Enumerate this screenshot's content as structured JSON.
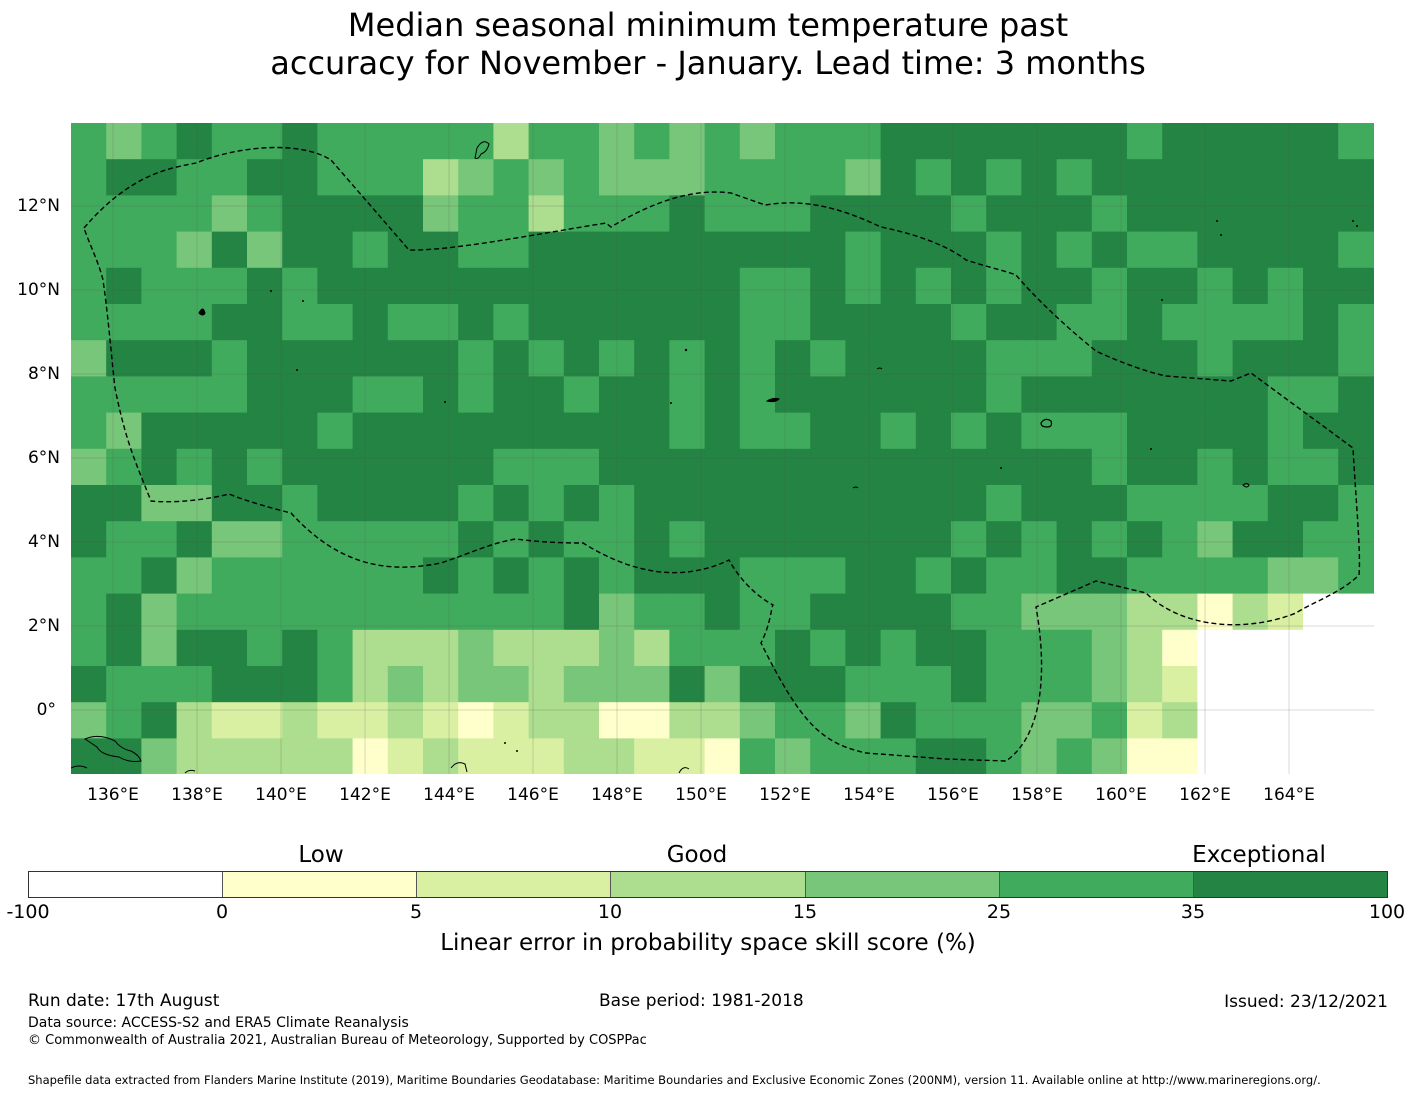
{
  "title": {
    "line1": "Median seasonal minimum temperature past",
    "line2": "accuracy for November - January. Lead time: 3 months"
  },
  "map": {
    "lat_labels": [
      "12°N",
      "10°N",
      "8°N",
      "6°N",
      "4°N",
      "2°N",
      "0°"
    ],
    "lon_labels": [
      "136°E",
      "138°E",
      "140°E",
      "142°E",
      "144°E",
      "146°E",
      "148°E",
      "150°E",
      "152°E",
      "154°E",
      "156°E",
      "158°E",
      "160°E",
      "162°E",
      "164°E"
    ],
    "extent": {
      "lon_min": 134.0,
      "lon_max": 165.0,
      "lat_min": -1.5,
      "lat_max": 14.0
    },
    "grid_step_deg": 0.833,
    "eez_boundary": "dashed-black",
    "land_outline": "thin-black"
  },
  "legend": {
    "categories": [
      {
        "label": "Low",
        "position_value": "0-10"
      },
      {
        "label": "Good",
        "position_value": "10-25"
      },
      {
        "label": "Exceptional",
        "position_value": "35-100"
      }
    ],
    "bins": [
      {
        "from": "-100",
        "to": "0",
        "color": "#ffffff"
      },
      {
        "from": "0",
        "to": "5",
        "color": "#ffffcc"
      },
      {
        "from": "5",
        "to": "10",
        "color": "#d9f0a3"
      },
      {
        "from": "10",
        "to": "15",
        "color": "#addd8e"
      },
      {
        "from": "15",
        "to": "25",
        "color": "#78c679"
      },
      {
        "from": "25",
        "to": "35",
        "color": "#41ab5d"
      },
      {
        "from": "35",
        "to": "100",
        "color": "#238443"
      }
    ],
    "tick_labels": [
      "-100",
      "0",
      "5",
      "10",
      "15",
      "25",
      "35",
      "100"
    ],
    "axis_label": "Linear error in probability space skill score (%)"
  },
  "footer": {
    "run_date": "Run date: 17th August",
    "base_period": "Base period: 1981-2018",
    "issued": "Issued: 23/12/2021",
    "data_source": "Data source: ACCESS-S2 and ERA5 Climate Reanalysis",
    "copyright": "© Commonwealth of Australia 2021, Australian Bureau of Meteorology, Supported by COSPPac",
    "shapefile": "Shapefile data extracted from Flanders Marine Institute (2019), Maritime Boundaries Geodatabase: Maritime Boundaries and Exclusive Economic Zones (200NM), version 11. Available online at http://www.marineregions.org/."
  }
}
